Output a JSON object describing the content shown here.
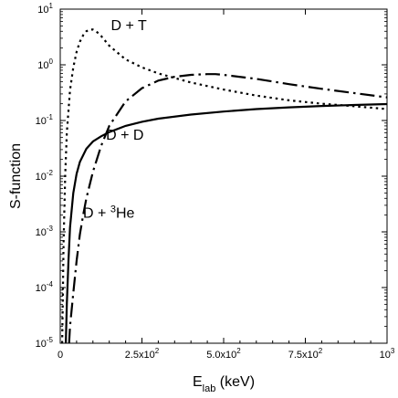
{
  "chart_data": {
    "type": "line",
    "xlabel_main": "E",
    "xlabel_sub": "lab",
    "xlabel_rest": " (keV)",
    "ylabel": "S-function",
    "xlim": [
      0,
      1000
    ],
    "ylim": [
      1e-05,
      10
    ],
    "y_scale": "log",
    "grid": false,
    "legend": "none",
    "x_ticks": [
      {
        "value": 0,
        "base": "0",
        "exp": ""
      },
      {
        "value": 250,
        "base": "2.5x10",
        "exp": "2"
      },
      {
        "value": 500,
        "base": "5.0x10",
        "exp": "2"
      },
      {
        "value": 750,
        "base": "7.5x10",
        "exp": "2"
      },
      {
        "value": 1000,
        "base": "10",
        "exp": "3"
      }
    ],
    "y_ticks": [
      {
        "value": 1e-05,
        "base": "10",
        "exp": "-5"
      },
      {
        "value": 0.0001,
        "base": "10",
        "exp": "-4"
      },
      {
        "value": 0.001,
        "base": "10",
        "exp": "-3"
      },
      {
        "value": 0.01,
        "base": "10",
        "exp": "-2"
      },
      {
        "value": 0.1,
        "base": "10",
        "exp": "-1"
      },
      {
        "value": 1,
        "base": "10",
        "exp": "0"
      },
      {
        "value": 10,
        "base": "10",
        "exp": "1"
      }
    ],
    "series": [
      {
        "label": "D + D",
        "label_pre": "D + D",
        "label_sup": "",
        "label_post": "",
        "style": "solid",
        "label_at": [
          140,
          0.045
        ],
        "x": [
          17,
          20,
          25,
          30,
          40,
          50,
          60,
          80,
          100,
          125,
          150,
          200,
          250,
          300,
          400,
          500,
          600,
          700,
          800,
          900,
          1000
        ],
        "y": [
          1e-05,
          5e-05,
          0.0003,
          0.0012,
          0.005,
          0.011,
          0.018,
          0.031,
          0.042,
          0.052,
          0.062,
          0.08,
          0.095,
          0.108,
          0.128,
          0.145,
          0.16,
          0.172,
          0.182,
          0.19,
          0.197
        ]
      },
      {
        "label": "D + T",
        "label_pre": "D + T",
        "label_sup": "",
        "label_post": "",
        "style": "dotted",
        "label_at": [
          155,
          4.2
        ],
        "x": [
          6,
          8,
          10,
          15,
          20,
          30,
          40,
          50,
          60,
          70,
          80,
          90,
          100,
          110,
          125,
          150,
          200,
          250,
          300,
          400,
          500,
          600,
          700,
          800,
          900,
          1000
        ],
        "y": [
          1e-05,
          8e-05,
          0.0006,
          0.01,
          0.06,
          0.35,
          0.9,
          1.7,
          2.6,
          3.4,
          4.0,
          4.3,
          4.3,
          4.0,
          3.3,
          2.2,
          1.25,
          0.9,
          0.7,
          0.48,
          0.36,
          0.28,
          0.23,
          0.2,
          0.18,
          0.16
        ]
      },
      {
        "label": "D + 3He",
        "label_pre": "D + ",
        "label_sup": "3",
        "label_post": "He",
        "style": "dash-dot",
        "label_at": [
          70,
          0.0018
        ],
        "x": [
          27,
          30,
          40,
          50,
          60,
          70,
          80,
          100,
          125,
          150,
          200,
          250,
          300,
          350,
          400,
          450,
          475,
          500,
          600,
          700,
          800,
          900,
          1000
        ],
        "y": [
          1e-05,
          2e-05,
          8e-05,
          0.0003,
          0.0009,
          0.002,
          0.004,
          0.012,
          0.035,
          0.08,
          0.22,
          0.38,
          0.52,
          0.61,
          0.66,
          0.68,
          0.68,
          0.66,
          0.56,
          0.45,
          0.37,
          0.31,
          0.26
        ]
      }
    ]
  }
}
